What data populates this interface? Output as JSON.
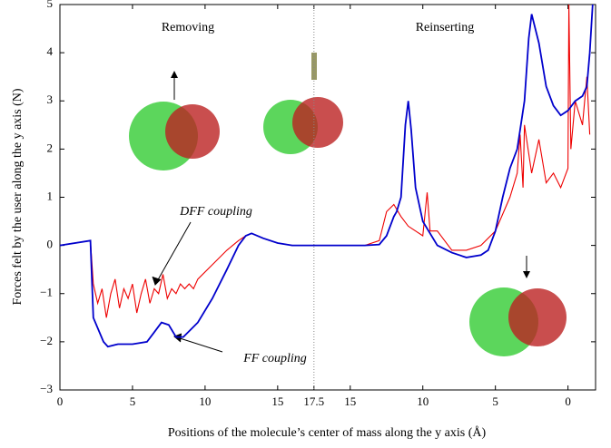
{
  "chart_data": {
    "type": "line",
    "xlabel": "Positions of the molecule’s center of mass along the y axis (Å)",
    "ylabel": "Forces felt by the user along the y axis (N)",
    "annotations": [
      "Removing",
      "Reinserting",
      "DFF coupling",
      "FF coupling"
    ],
    "xlim": [
      0,
      36.9
    ],
    "ylim": [
      -3,
      5
    ],
    "xticks": [
      0,
      5,
      10,
      15,
      17.5,
      {
        "value": 20,
        "label": "15"
      },
      {
        "value": 25,
        "label": "10"
      },
      {
        "value": 30,
        "label": "5"
      },
      {
        "value": 35,
        "label": "0"
      }
    ],
    "yticks": [
      {
        "value": -3,
        "label": "−3"
      },
      {
        "value": -2,
        "label": "−2"
      },
      {
        "value": -1,
        "label": "−1"
      },
      0,
      1,
      2,
      3,
      4,
      5
    ],
    "vline": 17.5,
    "series": [
      {
        "name": "FF coupling",
        "color": "#0000cc",
        "x": [
          0,
          2.1,
          2.3,
          3.0,
          3.3,
          4,
          5,
          6,
          6.5,
          7,
          7.5,
          8,
          8.5,
          9.5,
          10.5,
          11.5,
          12.3,
          12.8,
          13.2,
          14,
          15,
          16,
          17.5,
          21,
          22,
          22.5,
          23,
          23.2,
          23.5,
          23.8,
          24.0,
          24.2,
          24.5,
          25,
          26,
          27,
          28,
          29,
          29.5,
          30,
          30.5,
          31,
          31.5,
          32,
          32.3,
          32.5,
          33,
          33.5,
          34,
          34.5,
          35,
          35.5,
          36,
          36.3,
          36.5,
          36.7
        ],
        "values": [
          0,
          0.1,
          -1.5,
          -2.0,
          -2.1,
          -2.05,
          -2.05,
          -2.0,
          -1.8,
          -1.6,
          -1.65,
          -1.9,
          -1.9,
          -1.6,
          -1.1,
          -0.5,
          0.0,
          0.2,
          0.25,
          0.15,
          0.05,
          0.0,
          0.0,
          0.0,
          0.02,
          0.2,
          0.6,
          0.7,
          1.0,
          2.5,
          3.0,
          2.4,
          1.2,
          0.5,
          0.0,
          -0.15,
          -0.25,
          -0.2,
          -0.1,
          0.3,
          1.0,
          1.6,
          2.0,
          3.0,
          4.3,
          4.8,
          4.2,
          3.3,
          2.9,
          2.7,
          2.8,
          3.0,
          3.1,
          3.3,
          4.0,
          5.0
        ]
      },
      {
        "name": "DFF coupling",
        "color": "#ee0000",
        "x": [
          0,
          2.1,
          2.3,
          2.6,
          2.9,
          3.2,
          3.5,
          3.8,
          4.1,
          4.4,
          4.7,
          5.0,
          5.3,
          5.6,
          5.9,
          6.2,
          6.5,
          6.8,
          7.1,
          7.4,
          7.7,
          8.0,
          8.3,
          8.6,
          8.9,
          9.2,
          9.5,
          10.5,
          11.5,
          12.3,
          12.8,
          13.2,
          14,
          15,
          16,
          17.5,
          21,
          22,
          22.5,
          23,
          23.5,
          24,
          24.5,
          25,
          25.3,
          25.5,
          26,
          26.5,
          27,
          28,
          29,
          30,
          31,
          31.5,
          31.7,
          31.9,
          32,
          32.5,
          33,
          33.5,
          34,
          34.5,
          35,
          35.06,
          35.2,
          35.5,
          36,
          36.3,
          36.5
        ],
        "values": [
          0,
          0.1,
          -0.8,
          -1.2,
          -0.9,
          -1.5,
          -1.0,
          -0.7,
          -1.3,
          -0.9,
          -1.1,
          -0.8,
          -1.4,
          -1.0,
          -0.7,
          -1.2,
          -0.9,
          -1.0,
          -0.6,
          -1.1,
          -0.9,
          -1.0,
          -0.8,
          -0.9,
          -0.8,
          -0.9,
          -0.7,
          -0.4,
          -0.1,
          0.1,
          0.2,
          0.25,
          0.15,
          0.05,
          0.0,
          0.0,
          0.0,
          0.1,
          0.7,
          0.85,
          0.6,
          0.4,
          0.3,
          0.2,
          1.1,
          0.3,
          0.3,
          0.1,
          -0.1,
          -0.1,
          0.0,
          0.3,
          1.0,
          1.5,
          2.3,
          1.2,
          2.5,
          1.5,
          2.2,
          1.3,
          1.5,
          1.2,
          1.6,
          5.0,
          2.0,
          3.0,
          2.5,
          3.5,
          2.3
        ]
      }
    ]
  }
}
